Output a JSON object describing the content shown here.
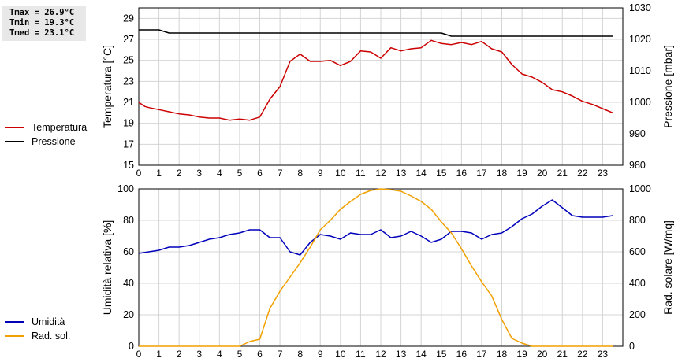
{
  "stats": {
    "tmax": "Tmax = 26.9°C",
    "tmin": "Tmin = 19.3°C",
    "tmed": "Tmed = 23.1°C"
  },
  "legend_top": [
    {
      "label": "Temperatura",
      "color": "#cc0000"
    },
    {
      "label": "Pressione",
      "color": "#000000"
    }
  ],
  "legend_bottom": [
    {
      "label": "Umidità",
      "color": "#0000bb"
    },
    {
      "label": "Rad. sol.",
      "color": "#f0a000"
    }
  ],
  "chart_data": [
    {
      "type": "line",
      "ylabel": "Temperatura [°C]",
      "y2label": "Pressione [mbar]",
      "xlim": [
        0,
        24
      ],
      "ylim": [
        15,
        30
      ],
      "y2lim": [
        980,
        1030
      ],
      "yticks": [
        15,
        17,
        19,
        21,
        23,
        25,
        27,
        29
      ],
      "y2ticks": [
        980,
        990,
        1000,
        1010,
        1020,
        1030
      ],
      "xticks": [
        0,
        1,
        2,
        3,
        4,
        5,
        6,
        7,
        8,
        9,
        10,
        11,
        12,
        13,
        14,
        15,
        16,
        17,
        18,
        19,
        20,
        21,
        22,
        23
      ],
      "grid": true,
      "series": [
        {
          "name": "Temperatura",
          "axis": "left",
          "color": "#cc0000",
          "x": [
            0,
            0.3,
            0.5,
            1,
            1.5,
            2,
            2.5,
            3,
            3.5,
            4,
            4.5,
            5,
            5.5,
            6,
            6.5,
            7,
            7.5,
            8,
            8.5,
            9,
            9.5,
            10,
            10.5,
            11,
            11.5,
            12,
            12.5,
            13,
            13.5,
            14,
            14.5,
            15,
            15.5,
            16,
            16.5,
            17,
            17.5,
            18,
            18.5,
            19,
            19.5,
            20,
            20.5,
            21,
            21.5,
            22,
            22.5,
            23,
            23.5
          ],
          "values": [
            21.0,
            20.6,
            20.5,
            20.3,
            20.1,
            19.9,
            19.8,
            19.6,
            19.5,
            19.5,
            19.3,
            19.4,
            19.3,
            19.6,
            21.3,
            22.5,
            24.9,
            25.6,
            24.9,
            24.9,
            25.0,
            24.5,
            24.9,
            25.9,
            25.8,
            25.2,
            26.2,
            25.9,
            26.1,
            26.2,
            26.9,
            26.6,
            26.5,
            26.7,
            26.5,
            26.8,
            26.1,
            25.8,
            24.6,
            23.7,
            23.4,
            22.9,
            22.2,
            22.0,
            21.6,
            21.1,
            20.8,
            20.4,
            20.0
          ]
        },
        {
          "name": "Pressione",
          "axis": "right",
          "color": "#000000",
          "x": [
            0,
            1,
            1.5,
            2,
            15,
            15.5,
            16,
            23.5
          ],
          "values": [
            1023,
            1023,
            1022,
            1022,
            1022,
            1021,
            1021,
            1021
          ]
        }
      ]
    },
    {
      "type": "line",
      "ylabel": "Umidità relativa [%]",
      "y2label": "Rad. solare [W/mq]",
      "xlim": [
        0,
        24
      ],
      "ylim": [
        0,
        100
      ],
      "y2lim": [
        0,
        1000
      ],
      "yticks": [
        0,
        20,
        40,
        60,
        80,
        100
      ],
      "y2ticks": [
        0,
        200,
        400,
        600,
        800,
        1000
      ],
      "xticks": [
        0,
        1,
        2,
        3,
        4,
        5,
        6,
        7,
        8,
        9,
        10,
        11,
        12,
        13,
        14,
        15,
        16,
        17,
        18,
        19,
        20,
        21,
        22,
        23
      ],
      "grid": true,
      "series": [
        {
          "name": "Umidità",
          "axis": "left",
          "color": "#0000bb",
          "x": [
            0,
            0.5,
            1,
            1.5,
            2,
            2.5,
            3,
            3.5,
            4,
            4.5,
            5,
            5.5,
            6,
            6.5,
            7,
            7.5,
            8,
            8.5,
            9,
            9.5,
            10,
            10.5,
            11,
            11.5,
            12,
            12.5,
            13,
            13.5,
            14,
            14.5,
            15,
            15.5,
            16,
            16.5,
            17,
            17.5,
            18,
            18.5,
            19,
            19.5,
            20,
            20.5,
            21,
            21.5,
            22,
            22.5,
            23,
            23.5
          ],
          "values": [
            59,
            60,
            61,
            63,
            63,
            64,
            66,
            68,
            69,
            71,
            72,
            74,
            74,
            69,
            69,
            60,
            58,
            66,
            71,
            70,
            68,
            72,
            71,
            71,
            74,
            69,
            70,
            73,
            70,
            66,
            68,
            73,
            73,
            72,
            68,
            71,
            72,
            76,
            81,
            84,
            89,
            93,
            88,
            83,
            82,
            82,
            82,
            83
          ]
        },
        {
          "name": "Rad. sol.",
          "axis": "right",
          "color": "#f0a000",
          "x": [
            0,
            5,
            5.5,
            6,
            6.5,
            7,
            7.5,
            8,
            8.5,
            9,
            9.5,
            10,
            10.5,
            11,
            11.5,
            12,
            12.5,
            13,
            13.5,
            14,
            14.5,
            15,
            15.5,
            16,
            16.5,
            17,
            17.5,
            18,
            18.5,
            19,
            19.5,
            20,
            23.5
          ],
          "values": [
            0,
            0,
            30,
            45,
            240,
            350,
            440,
            530,
            630,
            740,
            800,
            870,
            920,
            965,
            990,
            1000,
            995,
            985,
            955,
            920,
            870,
            790,
            720,
            620,
            510,
            410,
            320,
            170,
            50,
            20,
            0,
            0,
            0
          ]
        }
      ]
    }
  ]
}
